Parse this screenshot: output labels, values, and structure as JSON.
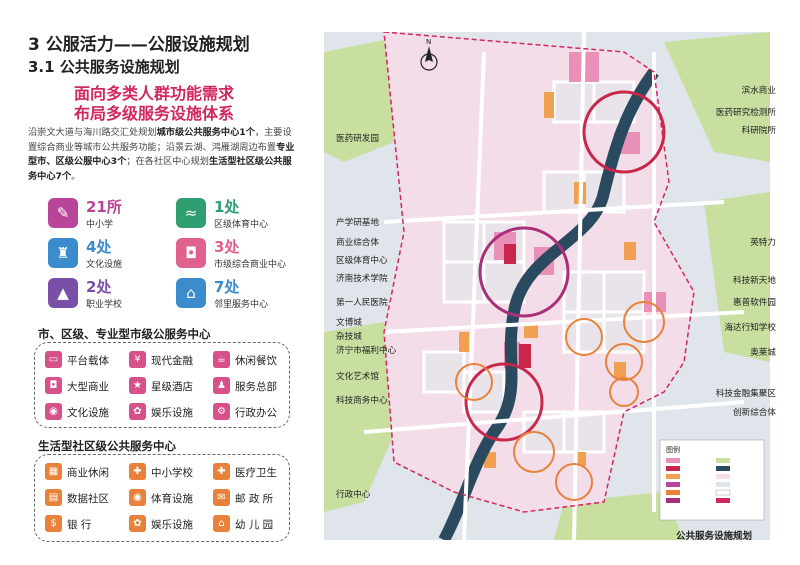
{
  "header": {
    "title": "3 公服活力——公服设施规划",
    "subtitle": "3.1 公共服务设施规划",
    "headline_1": "面向多类人群功能需求",
    "headline_2": "布局多级服务设施体系"
  },
  "intro": {
    "p1": "沿崇文大道与海川路交汇处规划",
    "b1": "城市级公共服务中心1个",
    "p2": "，主要设置综合商业等城市公共服务功能；沿景云湖、鸿雁湖周边布置",
    "b2": "专业型市、区级公服中心3个",
    "p3": "；在各社区中心规划",
    "b3": "生活型社区级公共服务中心7个",
    "p4": "。"
  },
  "stats": [
    {
      "num": "21所",
      "label": "中小学",
      "icon": "school-icon",
      "color": "#b8459a",
      "glyph": "✎"
    },
    {
      "num": "1处",
      "label": "区级体育中心",
      "icon": "swimmer-icon",
      "color": "#2f9e70",
      "glyph": "≈"
    },
    {
      "num": "4处",
      "label": "文化设施",
      "icon": "culture-icon",
      "color": "#3a8ccc",
      "glyph": "♜"
    },
    {
      "num": "3处",
      "label": "市级综合商业中心",
      "icon": "shopping-bag-icon",
      "color": "#e0608e",
      "glyph": "◘"
    },
    {
      "num": "2处",
      "label": "职业学校",
      "icon": "graduation-icon",
      "color": "#7a4fa8",
      "glyph": "▲"
    },
    {
      "num": "7处",
      "label": "邻里服务中心",
      "icon": "house-icon",
      "color": "#3a8ccc",
      "glyph": "⌂"
    }
  ],
  "city_box": {
    "title": "市、区级、专业型市级公服务中心",
    "items": [
      {
        "label": "平台载体",
        "icon": "screen-icon",
        "color": "#d8508a",
        "glyph": "▭"
      },
      {
        "label": "现代金融",
        "icon": "finance-icon",
        "color": "#d8508a",
        "glyph": "¥"
      },
      {
        "label": "休闲餐饮",
        "icon": "coffee-icon",
        "color": "#d8508a",
        "glyph": "☕"
      },
      {
        "label": "大型商业",
        "icon": "shopping-icon",
        "color": "#d8508a",
        "glyph": "◘"
      },
      {
        "label": "星级酒店",
        "icon": "hotel-icon",
        "color": "#d8508a",
        "glyph": "★"
      },
      {
        "label": "服务总部",
        "icon": "headquarters-icon",
        "color": "#d8508a",
        "glyph": "♟"
      },
      {
        "label": "文化设施",
        "icon": "culture-icon",
        "color": "#d8508a",
        "glyph": "◉"
      },
      {
        "label": "娱乐设施",
        "icon": "entertainment-icon",
        "color": "#d8508a",
        "glyph": "✿"
      },
      {
        "label": "行政办公",
        "icon": "office-icon",
        "color": "#d8508a",
        "glyph": "⚙"
      }
    ]
  },
  "community_box": {
    "title": "生活型社区级公共服务中心",
    "items": [
      {
        "label": "商业休闲",
        "icon": "shop-icon",
        "color": "#e8823a",
        "glyph": "▦"
      },
      {
        "label": "中小学校",
        "icon": "school-icon",
        "color": "#e8823a",
        "glyph": "✚"
      },
      {
        "label": "医疗卫生",
        "icon": "medical-icon",
        "color": "#e8823a",
        "glyph": "✚"
      },
      {
        "label": "数据社区",
        "icon": "data-icon",
        "color": "#e8823a",
        "glyph": "▤"
      },
      {
        "label": "体育设施",
        "icon": "sports-icon",
        "color": "#e8823a",
        "glyph": "◉"
      },
      {
        "label": "邮 政 所",
        "icon": "mail-icon",
        "color": "#e8823a",
        "glyph": "✉"
      },
      {
        "label": "银      行",
        "icon": "bank-icon",
        "color": "#e8823a",
        "glyph": "$"
      },
      {
        "label": "娱乐设施",
        "icon": "entertainment-icon",
        "color": "#e8823a",
        "glyph": "✿"
      },
      {
        "label": "幼 儿 园",
        "icon": "kindergarten-icon",
        "color": "#e8823a",
        "glyph": "⌂"
      }
    ]
  },
  "map": {
    "north_label": "N",
    "map_title": "公共服务设施规划",
    "legend_title": "图例",
    "labels_left": [
      "医药研发园",
      "产学研基地",
      "商业综合体",
      "区级体育中心",
      "济南技术学院",
      "第一人民医院",
      "文博城",
      "杂技城",
      "济宁市福利中心",
      "文化艺术馆",
      "科技商务中心",
      "行政中心"
    ],
    "labels_right": [
      "滨水商业",
      "医药研究检测所",
      "科研院所",
      "英特力",
      "科技新天地",
      "惠普软件园",
      "海达行知学校",
      "奥莱城",
      "科技金融集聚区",
      "创新综合体"
    ],
    "colors": {
      "accent": "#d2275f",
      "park": "#c8dfa0",
      "water": "#2a4b5f",
      "commercial": "#e890b8",
      "education": "#f0a050",
      "residential": "#f3dde8",
      "road": "#ffffff"
    }
  }
}
